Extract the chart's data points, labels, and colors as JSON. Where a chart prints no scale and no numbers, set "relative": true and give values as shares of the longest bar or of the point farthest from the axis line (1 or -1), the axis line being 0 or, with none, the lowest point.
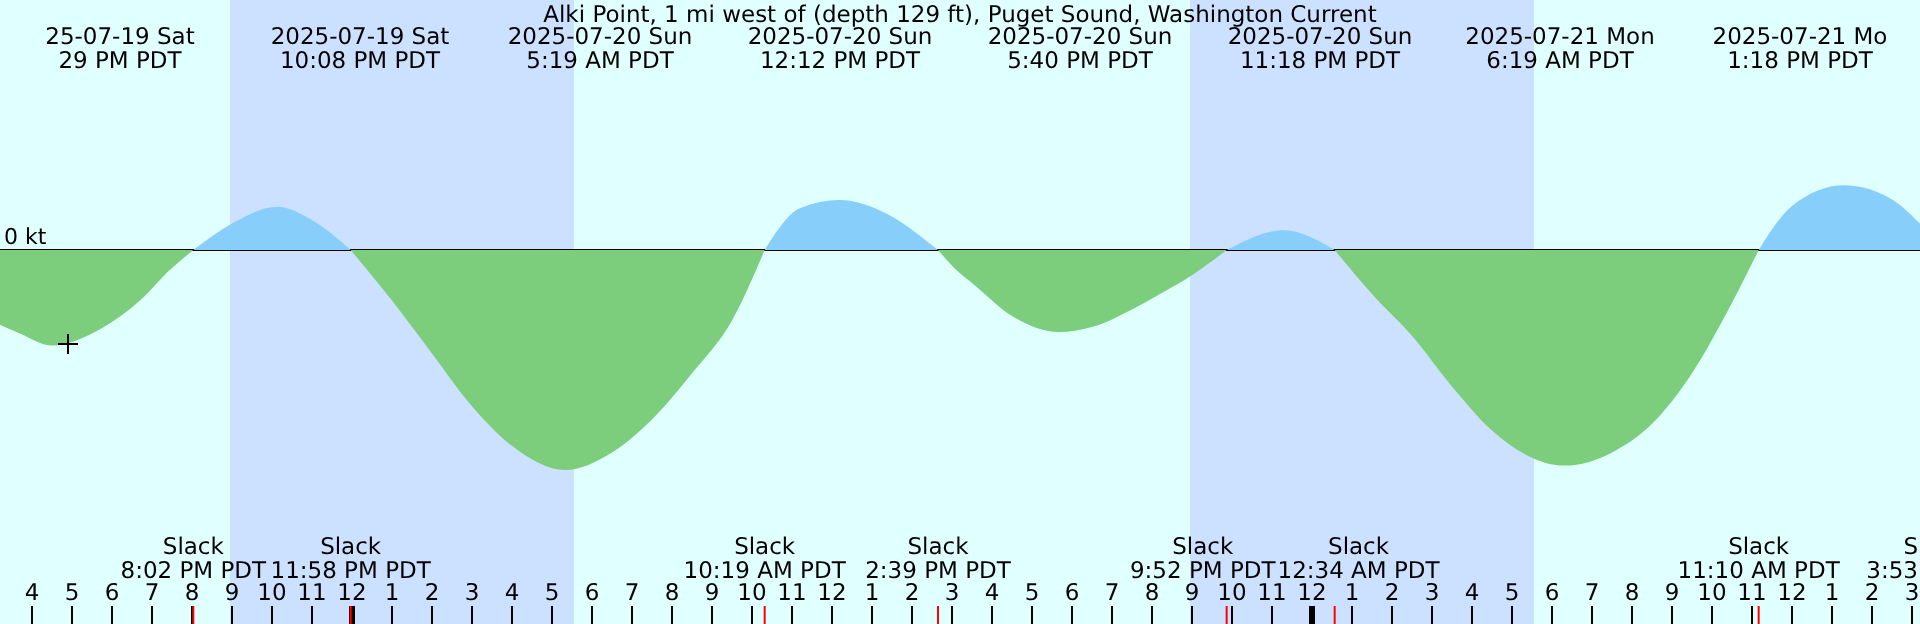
{
  "chart_data": {
    "type": "area",
    "title": "Alki Point, 1 mi west of (depth 129 ft), Puget Sound, Washington Current",
    "relative": true,
    "xlim": [
      "2025-07-19T15:12",
      "2025-07-21T15:12"
    ],
    "xticks": [
      {
        "value": "2025-07-19T16:00",
        "label": "4"
      },
      {
        "value": "2025-07-19T17:00",
        "label": "5"
      },
      {
        "value": "2025-07-19T18:00",
        "label": "6"
      },
      {
        "value": "2025-07-19T19:00",
        "label": "7"
      },
      {
        "value": "2025-07-19T20:00",
        "label": "8"
      },
      {
        "value": "2025-07-19T21:00",
        "label": "9"
      },
      {
        "value": "2025-07-19T22:00",
        "label": "10"
      },
      {
        "value": "2025-07-19T23:00",
        "label": "11"
      },
      {
        "value": "2025-07-20T00:00",
        "label": "12"
      },
      {
        "value": "2025-07-20T01:00",
        "label": "1"
      },
      {
        "value": "2025-07-20T02:00",
        "label": "2"
      },
      {
        "value": "2025-07-20T03:00",
        "label": "3"
      },
      {
        "value": "2025-07-20T04:00",
        "label": "4"
      },
      {
        "value": "2025-07-20T05:00",
        "label": "5"
      },
      {
        "value": "2025-07-20T06:00",
        "label": "6"
      },
      {
        "value": "2025-07-20T07:00",
        "label": "7"
      },
      {
        "value": "2025-07-20T08:00",
        "label": "8"
      },
      {
        "value": "2025-07-20T09:00",
        "label": "9"
      },
      {
        "value": "2025-07-20T10:00",
        "label": "10"
      },
      {
        "value": "2025-07-20T11:00",
        "label": "11"
      },
      {
        "value": "2025-07-20T12:00",
        "label": "12"
      },
      {
        "value": "2025-07-20T13:00",
        "label": "1"
      },
      {
        "value": "2025-07-20T14:00",
        "label": "2"
      },
      {
        "value": "2025-07-20T15:00",
        "label": "3"
      },
      {
        "value": "2025-07-20T16:00",
        "label": "4"
      },
      {
        "value": "2025-07-20T17:00",
        "label": "5"
      },
      {
        "value": "2025-07-20T18:00",
        "label": "6"
      },
      {
        "value": "2025-07-20T19:00",
        "label": "7"
      },
      {
        "value": "2025-07-20T20:00",
        "label": "8"
      },
      {
        "value": "2025-07-20T21:00",
        "label": "9"
      },
      {
        "value": "2025-07-20T22:00",
        "label": "10"
      },
      {
        "value": "2025-07-20T23:00",
        "label": "11"
      },
      {
        "value": "2025-07-21T00:00",
        "label": "12"
      },
      {
        "value": "2025-07-21T01:00",
        "label": "1"
      },
      {
        "value": "2025-07-21T02:00",
        "label": "2"
      },
      {
        "value": "2025-07-21T03:00",
        "label": "3"
      },
      {
        "value": "2025-07-21T04:00",
        "label": "4"
      },
      {
        "value": "2025-07-21T05:00",
        "label": "5"
      },
      {
        "value": "2025-07-21T06:00",
        "label": "6"
      },
      {
        "value": "2025-07-21T07:00",
        "label": "7"
      },
      {
        "value": "2025-07-21T08:00",
        "label": "8"
      },
      {
        "value": "2025-07-21T09:00",
        "label": "9"
      },
      {
        "value": "2025-07-21T10:00",
        "label": "10"
      },
      {
        "value": "2025-07-21T11:00",
        "label": "11"
      },
      {
        "value": "2025-07-21T12:00",
        "label": "12"
      },
      {
        "value": "2025-07-21T13:00",
        "label": "1"
      },
      {
        "value": "2025-07-21T14:00",
        "label": "2"
      },
      {
        "value": "2025-07-21T15:00",
        "label": "3"
      }
    ],
    "series": [
      {
        "color": "#7ccd7c",
        "x": [
          "2025-07-19T15:12",
          "2025-07-19T15:42",
          "2025-07-19T16:29",
          "2025-07-19T17:42",
          "2025-07-19T18:42",
          "2025-07-19T19:27",
          "2025-07-19T20:02"
        ],
        "values": [
          -0.34,
          -0.38,
          -0.434,
          -0.36,
          -0.23,
          -0.09,
          0
        ]
      },
      {
        "color": "#87cefa",
        "x": [
          "2025-07-19T20:02",
          "2025-07-19T21:00",
          "2025-07-19T22:08",
          "2025-07-19T23:00",
          "2025-07-19T23:58"
        ],
        "values": [
          0,
          0.12,
          0.197,
          0.136,
          0
        ]
      },
      {
        "color": "#7ccd7c",
        "x": [
          "2025-07-19T23:58",
          "2025-07-20T01:00",
          "2025-07-20T02:00",
          "2025-07-20T03:00",
          "2025-07-20T04:00",
          "2025-07-20T05:19",
          "2025-07-20T06:30",
          "2025-07-20T07:30",
          "2025-07-20T08:30",
          "2025-07-20T09:30",
          "2025-07-20T10:19"
        ],
        "values": [
          0,
          -0.23,
          -0.47,
          -0.71,
          -0.89,
          -1,
          -0.92,
          -0.77,
          -0.56,
          -0.32,
          0
        ]
      },
      {
        "color": "#87cefa",
        "x": [
          "2025-07-20T10:19",
          "2025-07-20T11:12",
          "2025-07-20T12:12",
          "2025-07-20T13:12",
          "2025-07-20T14:39"
        ],
        "values": [
          0,
          0.19,
          0.227,
          0.18,
          0
        ]
      },
      {
        "color": "#7ccd7c",
        "x": [
          "2025-07-20T14:39",
          "2025-07-20T15:12",
          "2025-07-20T15:30",
          "2025-07-20T16:30",
          "2025-07-20T17:40",
          "2025-07-20T18:30",
          "2025-07-20T19:30",
          "2025-07-20T20:12",
          "2025-07-20T20:57",
          "2025-07-20T21:52"
        ],
        "values": [
          0,
          -0.106,
          -0.15,
          -0.3,
          -0.373,
          -0.35,
          -0.27,
          -0.2,
          -0.12,
          0
        ]
      },
      {
        "color": "#87cefa",
        "x": [
          "2025-07-20T21:52",
          "2025-07-20T23:18",
          "2025-07-21T00:34"
        ],
        "values": [
          0,
          0.09,
          0
        ]
      },
      {
        "color": "#7ccd7c",
        "x": [
          "2025-07-21T00:34",
          "2025-07-21T01:30",
          "2025-07-21T02:30",
          "2025-07-21T03:30",
          "2025-07-21T04:30",
          "2025-07-21T06:19",
          "2025-07-21T07:30",
          "2025-07-21T08:30",
          "2025-07-21T09:30",
          "2025-07-21T10:30",
          "2025-07-21T11:10"
        ],
        "values": [
          0,
          -0.2,
          -0.39,
          -0.62,
          -0.82,
          -0.98,
          -0.92,
          -0.79,
          -0.56,
          -0.24,
          0
        ]
      },
      {
        "color": "#87cefa",
        "x": [
          "2025-07-21T11:10",
          "2025-07-21T12:00",
          "2025-07-21T13:18",
          "2025-07-21T14:30",
          "2025-07-21T15:12"
        ],
        "values": [
          0,
          0.2,
          0.294,
          0.23,
          0.12
        ]
      }
    ],
    "bands": [
      {
        "axis": "x",
        "from": "2025-07-19T20:57",
        "to": "2025-07-20T05:33",
        "color": "#cce0ff"
      },
      {
        "axis": "x",
        "from": "2025-07-20T20:57",
        "to": "2025-07-21T05:33",
        "color": "#cce0ff"
      }
    ],
    "ref_lines": [
      {
        "axis": "y",
        "value": 0,
        "label": "0 kt",
        "color": "#000000"
      },
      {
        "axis": "x",
        "value": "2025-07-19T20:02",
        "label": "Slack\n8:02 PM PDT",
        "color": "#ff0000"
      },
      {
        "axis": "x",
        "value": "2025-07-19T23:58",
        "label": "Slack\n11:58 PM PDT",
        "color": "#ff0000"
      },
      {
        "axis": "x",
        "value": "2025-07-20T10:19",
        "label": "Slack\n10:19 AM PDT",
        "color": "#ff0000"
      },
      {
        "axis": "x",
        "value": "2025-07-20T14:39",
        "label": "Slack\n2:39 PM PDT",
        "color": "#ff0000"
      },
      {
        "axis": "x",
        "value": "2025-07-20T21:52",
        "label": "Slack\n9:52 PM PDT",
        "color": "#ff0000"
      },
      {
        "axis": "x",
        "value": "2025-07-21T00:34",
        "label": "Slack\n12:34 AM PDT",
        "color": "#ff0000"
      },
      {
        "axis": "x",
        "value": "2025-07-21T11:10",
        "label": "Slack\n11:10 AM PDT",
        "color": "#ff0000"
      }
    ],
    "annotations": [
      "25-07-19 Sat\n29 PM PDT",
      "2025-07-19 Sat\n10:08 PM PDT",
      "2025-07-20 Sun\n5:19 AM PDT",
      "2025-07-20 Sun\n12:12 PM PDT",
      "2025-07-20 Sun\n5:40 PM PDT",
      "2025-07-20 Sun\n11:18 PM PDT",
      "2025-07-21 Mon\n6:19 AM PDT",
      "2025-07-21 Mo\n1:18 PM PDT",
      "S\n3:53"
    ]
  }
}
